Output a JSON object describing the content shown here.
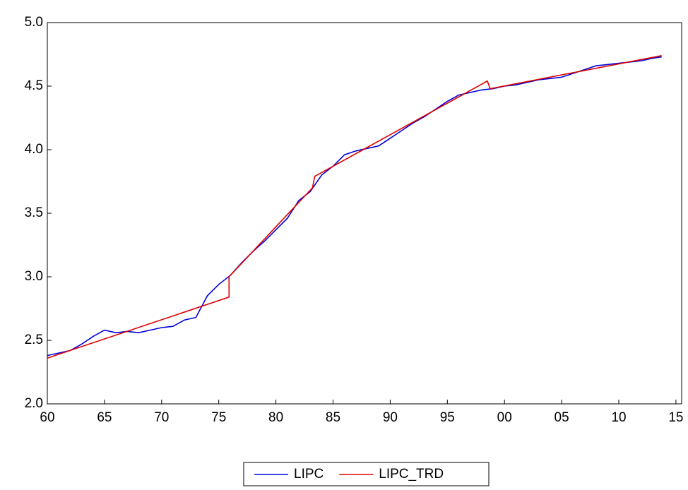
{
  "chart_data": {
    "type": "line",
    "xlim": [
      1960,
      2015.5
    ],
    "xticks": [
      {
        "value": 1960,
        "label": "60"
      },
      {
        "value": 1965,
        "label": "65"
      },
      {
        "value": 1970,
        "label": "70"
      },
      {
        "value": 1975,
        "label": "75"
      },
      {
        "value": 1980,
        "label": "80"
      },
      {
        "value": 1985,
        "label": "85"
      },
      {
        "value": 1990,
        "label": "90"
      },
      {
        "value": 1995,
        "label": "95"
      },
      {
        "value": 2000,
        "label": "00"
      },
      {
        "value": 2005,
        "label": "05"
      },
      {
        "value": 2010,
        "label": "10"
      },
      {
        "value": 2015,
        "label": "15"
      }
    ],
    "ylim": [
      2,
      5
    ],
    "yticks": [
      {
        "value": 2,
        "label": "2.0"
      },
      {
        "value": 2.5,
        "label": "2.5"
      },
      {
        "value": 3,
        "label": "3.0"
      },
      {
        "value": 3.5,
        "label": "3.5"
      },
      {
        "value": 4,
        "label": "4.0"
      },
      {
        "value": 4.5,
        "label": "4.5"
      },
      {
        "value": 5,
        "label": "5.0"
      }
    ],
    "legend": "bottom",
    "series": [
      {
        "name": "LIPC",
        "color": "#0000dd",
        "x": [
          1960,
          1961,
          1962,
          1963,
          1964,
          1965,
          1966,
          1967,
          1968,
          1969,
          1970,
          1971,
          1972,
          1973,
          1974,
          1975,
          1976,
          1977,
          1978,
          1979,
          1980,
          1981,
          1982,
          1983,
          1984,
          1985,
          1986,
          1987,
          1988,
          1989,
          1990,
          1991,
          1992,
          1993,
          1994,
          1995,
          1996,
          1997,
          1998,
          1999,
          2000,
          2001,
          2002,
          2003,
          2004,
          2005,
          2006,
          2007,
          2008,
          2009,
          2010,
          2011,
          2012,
          2013,
          2013.75
        ],
        "values": [
          2.38,
          2.4,
          2.42,
          2.47,
          2.53,
          2.58,
          2.56,
          2.57,
          2.56,
          2.58,
          2.6,
          2.61,
          2.66,
          2.68,
          2.85,
          2.94,
          3.01,
          3.11,
          3.2,
          3.28,
          3.37,
          3.46,
          3.6,
          3.67,
          3.8,
          3.87,
          3.96,
          3.99,
          4.01,
          4.03,
          4.09,
          4.15,
          4.21,
          4.26,
          4.32,
          4.38,
          4.43,
          4.45,
          4.47,
          4.48,
          4.5,
          4.51,
          4.53,
          4.55,
          4.56,
          4.57,
          4.6,
          4.63,
          4.66,
          4.67,
          4.68,
          4.69,
          4.7,
          4.72,
          4.73
        ]
      },
      {
        "name": "LIPC_TRD",
        "color": "#dd0000",
        "x": [
          1960,
          1975.9,
          1975.9,
          1983.2,
          1983.4,
          1998.5,
          1998.75,
          2013.75
        ],
        "values": [
          2.36,
          2.84,
          3.0,
          3.7,
          3.79,
          4.54,
          4.48,
          4.74
        ]
      }
    ]
  }
}
